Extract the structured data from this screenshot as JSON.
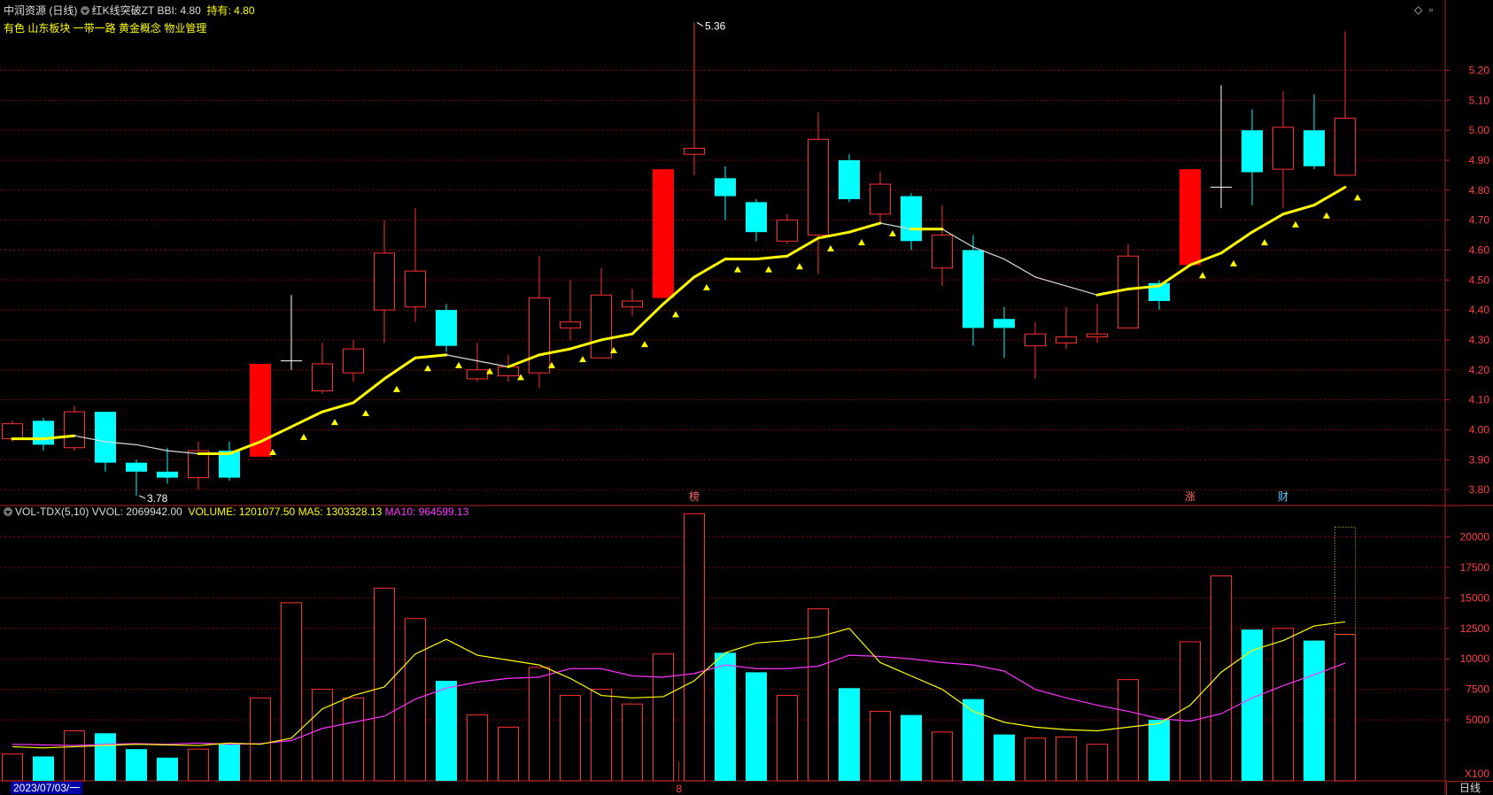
{
  "header": {
    "stock": "中润资源 (日线)",
    "indicator": "红K线突破ZT",
    "bbi_label": "BBI: 4.80",
    "hold_label": "持有: 4.80",
    "tags": "有色  山东板块  一带一路  黄金概念  物业管理"
  },
  "vol_header": {
    "name": "VOL-TDX(5,10)",
    "vvol": "VVOL: 2069942.00",
    "volume": "VOLUME: 1201077.50",
    "ma5": "MA5: 1303328.13",
    "ma10": "MA10: 964599.13"
  },
  "footer": {
    "date": "2023/07/03/一",
    "period": "日线",
    "month_marker": "8"
  },
  "markers": {
    "bang": "榜",
    "zhang": "涨",
    "cai": "财"
  },
  "colors": {
    "up": "#ff3030",
    "down": "#00ffff",
    "bbi_up": "#ffff00",
    "bbi_flat": "#dcdcdc",
    "ma5": "#ffff00",
    "ma10": "#ff33ff",
    "grid": "#8b0000",
    "axis": "#b02020",
    "tick": "#ff4040"
  },
  "chart_data": [
    {
      "type": "candlestick",
      "title": "中润资源 (日线)",
      "ylim": [
        3.75,
        5.37
      ],
      "yticks": [
        "3.80",
        "3.90",
        "4.00",
        "4.10",
        "4.20",
        "4.30",
        "4.40",
        "4.50",
        "4.60",
        "4.70",
        "4.80",
        "4.90",
        "5.00",
        "5.10",
        "5.20"
      ],
      "annotations": {
        "high": "5.36",
        "low": "3.78"
      },
      "candles": [
        {
          "o": 3.97,
          "c": 4.02,
          "h": 4.03,
          "l": 3.96
        },
        {
          "o": 4.03,
          "c": 3.95,
          "h": 4.04,
          "l": 3.93
        },
        {
          "o": 3.94,
          "c": 4.06,
          "h": 4.08,
          "l": 3.93
        },
        {
          "o": 4.06,
          "c": 3.89,
          "h": 4.06,
          "l": 3.86
        },
        {
          "o": 3.89,
          "c": 3.86,
          "h": 3.9,
          "l": 3.78
        },
        {
          "o": 3.86,
          "c": 3.84,
          "h": 3.94,
          "l": 3.82
        },
        {
          "o": 3.84,
          "c": 3.93,
          "h": 3.96,
          "l": 3.8
        },
        {
          "o": 3.93,
          "c": 3.84,
          "h": 3.96,
          "l": 3.83
        },
        {
          "o": 3.91,
          "c": 4.22,
          "h": 4.22,
          "l": 3.91
        },
        {
          "o": 4.23,
          "c": 4.23,
          "h": 4.45,
          "l": 4.2
        },
        {
          "o": 4.13,
          "c": 4.22,
          "h": 4.29,
          "l": 4.12
        },
        {
          "o": 4.19,
          "c": 4.27,
          "h": 4.3,
          "l": 4.16
        },
        {
          "o": 4.4,
          "c": 4.59,
          "h": 4.7,
          "l": 4.29
        },
        {
          "o": 4.41,
          "c": 4.53,
          "h": 4.74,
          "l": 4.36
        },
        {
          "o": 4.4,
          "c": 4.28,
          "h": 4.42,
          "l": 4.26
        },
        {
          "o": 4.17,
          "c": 4.2,
          "h": 4.29,
          "l": 4.16
        },
        {
          "o": 4.18,
          "c": 4.21,
          "h": 4.25,
          "l": 4.16
        },
        {
          "o": 4.19,
          "c": 4.44,
          "h": 4.58,
          "l": 4.14
        },
        {
          "o": 4.34,
          "c": 4.36,
          "h": 4.5,
          "l": 4.3
        },
        {
          "o": 4.24,
          "c": 4.45,
          "h": 4.54,
          "l": 4.24
        },
        {
          "o": 4.41,
          "c": 4.43,
          "h": 4.47,
          "l": 4.38
        },
        {
          "o": 4.44,
          "c": 4.87,
          "h": 4.87,
          "l": 4.44
        },
        {
          "o": 4.92,
          "c": 4.94,
          "h": 5.36,
          "l": 4.85
        },
        {
          "o": 4.84,
          "c": 4.78,
          "h": 4.88,
          "l": 4.7
        },
        {
          "o": 4.76,
          "c": 4.66,
          "h": 4.77,
          "l": 4.63
        },
        {
          "o": 4.63,
          "c": 4.7,
          "h": 4.72,
          "l": 4.62
        },
        {
          "o": 4.65,
          "c": 4.97,
          "h": 5.06,
          "l": 4.52
        },
        {
          "o": 4.9,
          "c": 4.77,
          "h": 4.92,
          "l": 4.76
        },
        {
          "o": 4.72,
          "c": 4.82,
          "h": 4.86,
          "l": 4.69
        },
        {
          "o": 4.78,
          "c": 4.63,
          "h": 4.79,
          "l": 4.6
        },
        {
          "o": 4.54,
          "c": 4.65,
          "h": 4.75,
          "l": 4.48
        },
        {
          "o": 4.6,
          "c": 4.34,
          "h": 4.65,
          "l": 4.28
        },
        {
          "o": 4.37,
          "c": 4.34,
          "h": 4.41,
          "l": 4.24
        },
        {
          "o": 4.28,
          "c": 4.32,
          "h": 4.36,
          "l": 4.17
        },
        {
          "o": 4.29,
          "c": 4.31,
          "h": 4.41,
          "l": 4.27
        },
        {
          "o": 4.31,
          "c": 4.32,
          "h": 4.42,
          "l": 4.29
        },
        {
          "o": 4.34,
          "c": 4.58,
          "h": 4.62,
          "l": 4.34
        },
        {
          "o": 4.49,
          "c": 4.43,
          "h": 4.5,
          "l": 4.4
        },
        {
          "o": 4.55,
          "c": 4.87,
          "h": 4.87,
          "l": 4.55
        },
        {
          "o": 4.81,
          "c": 4.81,
          "h": 5.15,
          "l": 4.74
        },
        {
          "o": 5.0,
          "c": 4.86,
          "h": 5.07,
          "l": 4.75
        },
        {
          "o": 4.87,
          "c": 5.01,
          "h": 5.13,
          "l": 4.74
        },
        {
          "o": 5.0,
          "c": 4.88,
          "h": 5.12,
          "l": 4.87
        },
        {
          "o": 4.85,
          "c": 5.04,
          "h": 5.33,
          "l": 4.85
        }
      ],
      "bbi": [
        3.97,
        3.97,
        3.98,
        3.96,
        3.95,
        3.93,
        3.92,
        3.92,
        3.96,
        4.01,
        4.06,
        4.09,
        4.17,
        4.24,
        4.25,
        4.23,
        4.21,
        4.25,
        4.27,
        4.3,
        4.32,
        4.42,
        4.51,
        4.57,
        4.57,
        4.58,
        4.64,
        4.66,
        4.69,
        4.67,
        4.67,
        4.61,
        4.57,
        4.51,
        4.48,
        4.45,
        4.47,
        4.48,
        4.55,
        4.59,
        4.66,
        4.72,
        4.75,
        4.81
      ]
    },
    {
      "type": "bar",
      "title": "VOL-TDX(5,10)",
      "ylim": [
        0,
        22500
      ],
      "yticks": [
        "5000",
        "7500",
        "10000",
        "12500",
        "15000",
        "17500",
        "20000"
      ],
      "unit": "X100",
      "volumes": [
        2200,
        2000,
        4100,
        3900,
        2600,
        1900,
        2600,
        3000,
        6800,
        14600,
        7500,
        6800,
        15800,
        13300,
        8200,
        5400,
        4400,
        9300,
        7000,
        7500,
        6300,
        10400,
        21900,
        10500,
        8900,
        7000,
        14100,
        7600,
        5700,
        5400,
        4000,
        6700,
        3800,
        3500,
        3600,
        3000,
        8300,
        5000,
        11400,
        16800,
        12400,
        12500,
        11500,
        12000
      ],
      "last_outline": 20800,
      "ma5": [
        2800,
        2700,
        2800,
        2900,
        3000,
        2950,
        2900,
        3100,
        3000,
        3500,
        5900,
        7000,
        7700,
        10400,
        11600,
        10300,
        9900,
        9500,
        8400,
        7000,
        6800,
        6900,
        8200,
        10500,
        11300,
        11500,
        11800,
        12500,
        9700,
        8600,
        7500,
        5700,
        4800,
        4400,
        4200,
        4100,
        4400,
        4700,
        6200,
        8900,
        10700,
        11500,
        12700,
        13033
      ],
      "ma10": [
        3000,
        2950,
        2900,
        3000,
        3050,
        3000,
        3100,
        3000,
        3050,
        3300,
        4300,
        4800,
        5300,
        6700,
        7600,
        8100,
        8400,
        8500,
        9200,
        9200,
        8600,
        8500,
        8800,
        9500,
        9200,
        9200,
        9400,
        10300,
        10200,
        10000,
        9700,
        9500,
        9000,
        7500,
        6800,
        6200,
        5700,
        5100,
        4900,
        5500,
        6800,
        7800,
        8700,
        9646
      ]
    }
  ]
}
